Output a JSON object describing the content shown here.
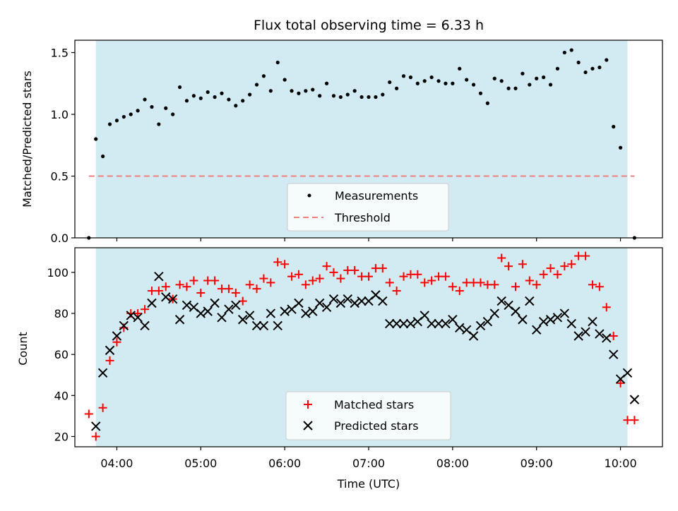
{
  "chart_data": [
    {
      "type": "scatter",
      "title": "Flux total observing time = 6.33 h",
      "xlabel": "",
      "ylabel": "Matched/Predicted stars",
      "xlim": [
        "03:30",
        "10:30"
      ],
      "ylim": [
        0,
        1.6
      ],
      "yticks": [
        0.0,
        0.5,
        1.0,
        1.5
      ],
      "ytick_labels": [
        "0.0",
        "0.5",
        "1.0",
        "1.5"
      ],
      "xticks": [
        "04:00",
        "05:00",
        "06:00",
        "07:00",
        "08:00",
        "09:00",
        "10:00"
      ],
      "shaded_interval": [
        "03:45",
        "10:05"
      ],
      "shade_color": "#add8e6",
      "legend_position": "lower center",
      "grid": false,
      "series": [
        {
          "name": "Measurements",
          "marker": "dot",
          "color": "#000000",
          "points": [
            [
              "03:40",
              0.0
            ],
            [
              "03:45",
              0.8
            ],
            [
              "03:50",
              0.66
            ],
            [
              "03:55",
              0.92
            ],
            [
              "04:00",
              0.95
            ],
            [
              "04:05",
              0.98
            ],
            [
              "04:10",
              1.0
            ],
            [
              "04:15",
              1.03
            ],
            [
              "04:20",
              1.12
            ],
            [
              "04:25",
              1.06
            ],
            [
              "04:30",
              0.92
            ],
            [
              "04:35",
              1.05
            ],
            [
              "04:40",
              1.0
            ],
            [
              "04:45",
              1.22
            ],
            [
              "04:50",
              1.11
            ],
            [
              "04:55",
              1.15
            ],
            [
              "05:00",
              1.13
            ],
            [
              "05:05",
              1.18
            ],
            [
              "05:10",
              1.14
            ],
            [
              "05:15",
              1.17
            ],
            [
              "05:20",
              1.12
            ],
            [
              "05:25",
              1.07
            ],
            [
              "05:30",
              1.11
            ],
            [
              "05:35",
              1.16
            ],
            [
              "05:40",
              1.24
            ],
            [
              "05:45",
              1.31
            ],
            [
              "05:50",
              1.19
            ],
            [
              "05:55",
              1.42
            ],
            [
              "06:00",
              1.28
            ],
            [
              "06:05",
              1.19
            ],
            [
              "06:10",
              1.17
            ],
            [
              "06:15",
              1.19
            ],
            [
              "06:20",
              1.2
            ],
            [
              "06:25",
              1.15
            ],
            [
              "06:30",
              1.25
            ],
            [
              "06:35",
              1.15
            ],
            [
              "06:40",
              1.14
            ],
            [
              "06:45",
              1.16
            ],
            [
              "06:50",
              1.19
            ],
            [
              "06:55",
              1.14
            ],
            [
              "07:00",
              1.14
            ],
            [
              "07:05",
              1.14
            ],
            [
              "07:10",
              1.16
            ],
            [
              "07:15",
              1.26
            ],
            [
              "07:20",
              1.21
            ],
            [
              "07:25",
              1.31
            ],
            [
              "07:30",
              1.3
            ],
            [
              "07:35",
              1.25
            ],
            [
              "07:40",
              1.27
            ],
            [
              "07:45",
              1.3
            ],
            [
              "07:50",
              1.27
            ],
            [
              "07:55",
              1.25
            ],
            [
              "08:00",
              1.25
            ],
            [
              "08:05",
              1.37
            ],
            [
              "08:10",
              1.28
            ],
            [
              "08:15",
              1.24
            ],
            [
              "08:20",
              1.17
            ],
            [
              "08:25",
              1.09
            ],
            [
              "08:30",
              1.29
            ],
            [
              "08:35",
              1.27
            ],
            [
              "08:40",
              1.21
            ],
            [
              "08:45",
              1.21
            ],
            [
              "08:50",
              1.33
            ],
            [
              "08:55",
              1.24
            ],
            [
              "09:00",
              1.29
            ],
            [
              "09:05",
              1.3
            ],
            [
              "09:10",
              1.24
            ],
            [
              "09:15",
              1.37
            ],
            [
              "09:20",
              1.5
            ],
            [
              "09:25",
              1.52
            ],
            [
              "09:30",
              1.42
            ],
            [
              "09:35",
              1.34
            ],
            [
              "09:40",
              1.37
            ],
            [
              "09:45",
              1.38
            ],
            [
              "09:50",
              1.44
            ],
            [
              "09:55",
              0.9
            ],
            [
              "10:00",
              0.73
            ],
            [
              "10:10",
              0.0
            ]
          ]
        },
        {
          "name": "Threshold",
          "style": "dashed",
          "color": "#f08080",
          "points": [
            [
              "03:40",
              0.5
            ],
            [
              "10:10",
              0.5
            ]
          ]
        }
      ]
    },
    {
      "type": "scatter",
      "title": "",
      "xlabel": "Time (UTC)",
      "ylabel": "Count",
      "xlim": [
        "03:30",
        "10:30"
      ],
      "ylim": [
        15,
        112
      ],
      "yticks": [
        20,
        40,
        60,
        80,
        100
      ],
      "ytick_labels": [
        "20",
        "40",
        "60",
        "80",
        "100"
      ],
      "xticks": [
        "04:00",
        "05:00",
        "06:00",
        "07:00",
        "08:00",
        "09:00",
        "10:00"
      ],
      "xtick_labels": [
        "04:00",
        "05:00",
        "06:00",
        "07:00",
        "08:00",
        "09:00",
        "10:00"
      ],
      "shaded_interval": [
        "03:45",
        "10:05"
      ],
      "shade_color": "#add8e6",
      "legend_position": "lower center",
      "grid": false,
      "series": [
        {
          "name": "Matched stars",
          "marker": "plus",
          "color": "#ff0000",
          "points": [
            [
              "03:40",
              31
            ],
            [
              "03:45",
              20
            ],
            [
              "03:50",
              34
            ],
            [
              "03:55",
              57
            ],
            [
              "04:00",
              66
            ],
            [
              "04:05",
              73
            ],
            [
              "04:10",
              80
            ],
            [
              "04:15",
              80
            ],
            [
              "04:20",
              82
            ],
            [
              "04:25",
              91
            ],
            [
              "04:30",
              91
            ],
            [
              "04:35",
              93
            ],
            [
              "04:40",
              87
            ],
            [
              "04:45",
              94
            ],
            [
              "04:50",
              93
            ],
            [
              "04:55",
              96
            ],
            [
              "05:00",
              90
            ],
            [
              "05:05",
              96
            ],
            [
              "05:10",
              96
            ],
            [
              "05:15",
              92
            ],
            [
              "05:20",
              92
            ],
            [
              "05:25",
              90
            ],
            [
              "05:30",
              86
            ],
            [
              "05:35",
              94
            ],
            [
              "05:40",
              92
            ],
            [
              "05:45",
              97
            ],
            [
              "05:50",
              95
            ],
            [
              "05:55",
              105
            ],
            [
              "06:00",
              104
            ],
            [
              "06:05",
              98
            ],
            [
              "06:10",
              99
            ],
            [
              "06:15",
              94
            ],
            [
              "06:20",
              96
            ],
            [
              "06:25",
              97
            ],
            [
              "06:30",
              103
            ],
            [
              "06:35",
              100
            ],
            [
              "06:40",
              97
            ],
            [
              "06:45",
              101
            ],
            [
              "06:50",
              101
            ],
            [
              "06:55",
              98
            ],
            [
              "07:00",
              98
            ],
            [
              "07:05",
              102
            ],
            [
              "07:10",
              102
            ],
            [
              "07:15",
              95
            ],
            [
              "07:20",
              91
            ],
            [
              "07:25",
              98
            ],
            [
              "07:30",
              99
            ],
            [
              "07:35",
              99
            ],
            [
              "07:40",
              95
            ],
            [
              "07:45",
              96
            ],
            [
              "07:50",
              98
            ],
            [
              "07:55",
              98
            ],
            [
              "08:00",
              93
            ],
            [
              "08:05",
              91
            ],
            [
              "08:10",
              95
            ],
            [
              "08:15",
              95
            ],
            [
              "08:20",
              95
            ],
            [
              "08:25",
              94
            ],
            [
              "08:30",
              94
            ],
            [
              "08:35",
              107
            ],
            [
              "08:40",
              103
            ],
            [
              "08:45",
              93
            ],
            [
              "08:50",
              104
            ],
            [
              "08:55",
              96
            ],
            [
              "09:00",
              94
            ],
            [
              "09:05",
              99
            ],
            [
              "09:10",
              102
            ],
            [
              "09:15",
              99
            ],
            [
              "09:20",
              103
            ],
            [
              "09:25",
              104
            ],
            [
              "09:30",
              108
            ],
            [
              "09:35",
              108
            ],
            [
              "09:40",
              94
            ],
            [
              "09:45",
              93
            ],
            [
              "09:50",
              83
            ],
            [
              "09:55",
              69
            ],
            [
              "10:00",
              46
            ],
            [
              "10:05",
              28
            ],
            [
              "10:10",
              28
            ]
          ]
        },
        {
          "name": "Predicted stars",
          "marker": "x",
          "color": "#000000",
          "points": [
            [
              "03:45",
              25
            ],
            [
              "03:50",
              51
            ],
            [
              "03:55",
              62
            ],
            [
              "04:00",
              69
            ],
            [
              "04:05",
              74
            ],
            [
              "04:10",
              79
            ],
            [
              "04:15",
              78
            ],
            [
              "04:20",
              74
            ],
            [
              "04:25",
              85
            ],
            [
              "04:30",
              98
            ],
            [
              "04:35",
              88
            ],
            [
              "04:40",
              87
            ],
            [
              "04:45",
              77
            ],
            [
              "04:50",
              84
            ],
            [
              "04:55",
              83
            ],
            [
              "05:00",
              80
            ],
            [
              "05:05",
              81
            ],
            [
              "05:10",
              85
            ],
            [
              "05:15",
              78
            ],
            [
              "05:20",
              82
            ],
            [
              "05:25",
              84
            ],
            [
              "05:30",
              77
            ],
            [
              "05:35",
              79
            ],
            [
              "05:40",
              74
            ],
            [
              "05:45",
              74
            ],
            [
              "05:50",
              80
            ],
            [
              "05:55",
              74
            ],
            [
              "06:00",
              81
            ],
            [
              "06:05",
              82
            ],
            [
              "06:10",
              85
            ],
            [
              "06:15",
              80
            ],
            [
              "06:20",
              81
            ],
            [
              "06:25",
              85
            ],
            [
              "06:30",
              83
            ],
            [
              "06:35",
              87
            ],
            [
              "06:40",
              85
            ],
            [
              "06:45",
              87
            ],
            [
              "06:50",
              85
            ],
            [
              "06:55",
              86
            ],
            [
              "07:00",
              86
            ],
            [
              "07:05",
              89
            ],
            [
              "07:10",
              86
            ],
            [
              "07:15",
              75
            ],
            [
              "07:20",
              75
            ],
            [
              "07:25",
              75
            ],
            [
              "07:30",
              75
            ],
            [
              "07:35",
              76
            ],
            [
              "07:40",
              79
            ],
            [
              "07:45",
              75
            ],
            [
              "07:50",
              75
            ],
            [
              "07:55",
              75
            ],
            [
              "08:00",
              77
            ],
            [
              "08:05",
              73
            ],
            [
              "08:10",
              72
            ],
            [
              "08:15",
              69
            ],
            [
              "08:20",
              74
            ],
            [
              "08:25",
              76
            ],
            [
              "08:30",
              80
            ],
            [
              "08:35",
              86
            ],
            [
              "08:40",
              84
            ],
            [
              "08:45",
              81
            ],
            [
              "08:50",
              77
            ],
            [
              "08:55",
              86
            ],
            [
              "09:00",
              72
            ],
            [
              "09:05",
              76
            ],
            [
              "09:10",
              77
            ],
            [
              "09:15",
              78
            ],
            [
              "09:20",
              80
            ],
            [
              "09:25",
              75
            ],
            [
              "09:30",
              69
            ],
            [
              "09:35",
              71
            ],
            [
              "09:40",
              76
            ],
            [
              "09:45",
              70
            ],
            [
              "09:50",
              68
            ],
            [
              "09:55",
              60
            ],
            [
              "10:00",
              48
            ],
            [
              "10:05",
              51
            ],
            [
              "10:10",
              38
            ]
          ]
        }
      ]
    }
  ]
}
